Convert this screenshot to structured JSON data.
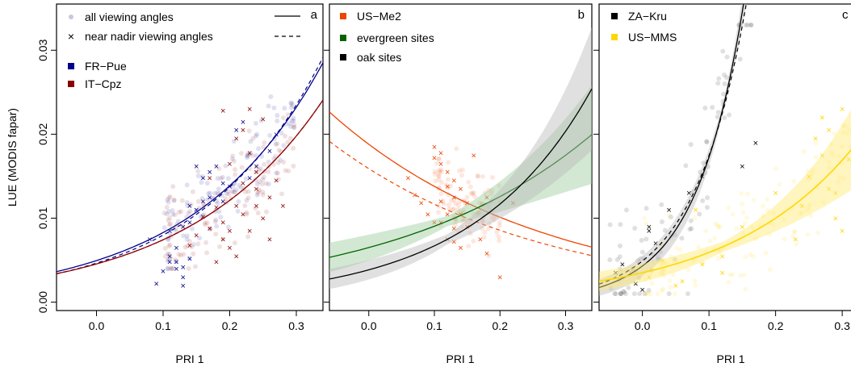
{
  "chart_data": [
    {
      "type": "scatter",
      "panel_label": "a",
      "xlabel": "PRI 1",
      "ylabel": "LUE (MODIS fapar)",
      "xlim": [
        -0.06,
        0.34
      ],
      "ylim": [
        -0.001,
        0.0355
      ],
      "xticks": [
        "0.0",
        "0.1",
        "0.2",
        "0.3"
      ],
      "xtick_values": [
        0.0,
        0.1,
        0.2,
        0.3
      ],
      "yticks": [
        "0.00",
        "0.01",
        "0.02",
        "0.03"
      ],
      "ytick_values": [
        0.0,
        0.01,
        0.02,
        0.03
      ],
      "legend": {
        "placement": "top-left",
        "style_entries": [
          {
            "label": "all viewing angles",
            "marker": "dot",
            "line": "solid"
          },
          {
            "label": "near nadir viewing angles",
            "marker": "cross",
            "line": "dashed"
          }
        ],
        "site_entries": [
          {
            "label": "FR−Pue",
            "color": "#00008B"
          },
          {
            "label": "IT−Cpz",
            "color": "#8B0000"
          }
        ]
      },
      "series": [
        {
          "name": "FR−Pue",
          "color": "#00008B",
          "fit": {
            "a": 0.00495,
            "b": 5.15
          },
          "fit_nadir": {
            "a": 0.00465,
            "b": 5.4
          },
          "all_points": {
            "x_range": [
              0.1,
              0.3
            ],
            "y_range": [
              0.004,
              0.025
            ],
            "count": 120
          },
          "nadir_points": [
            [
              0.08,
              0.0075
            ],
            [
              0.09,
              0.0022
            ],
            [
              0.1,
              0.0037
            ],
            [
              0.11,
              0.0055
            ],
            [
              0.11,
              0.0085
            ],
            [
              0.12,
              0.004
            ],
            [
              0.12,
              0.0048
            ],
            [
              0.12,
              0.0065
            ],
            [
              0.13,
              0.003
            ],
            [
              0.13,
              0.002
            ],
            [
              0.13,
              0.009
            ],
            [
              0.13,
              0.0042
            ],
            [
              0.14,
              0.0095
            ],
            [
              0.14,
              0.0052
            ],
            [
              0.15,
              0.0162
            ],
            [
              0.15,
              0.011
            ],
            [
              0.16,
              0.012
            ],
            [
              0.16,
              0.0148
            ],
            [
              0.17,
              0.0155
            ],
            [
              0.17,
              0.0125
            ],
            [
              0.18,
              0.0162
            ],
            [
              0.19,
              0.0142
            ],
            [
              0.2,
              0.0138
            ],
            [
              0.21,
              0.0205
            ],
            [
              0.22,
              0.0215
            ],
            [
              0.23,
              0.0148
            ],
            [
              0.24,
              0.0162
            ],
            [
              0.26,
              0.018
            ],
            [
              0.27,
              0.02
            ],
            [
              0.11,
              0.0048
            ],
            [
              0.14,
              0.0115
            ],
            [
              0.19,
              0.012
            ]
          ]
        },
        {
          "name": "IT−Cpz",
          "color": "#8B0000",
          "fit": {
            "a": 0.00455,
            "b": 4.9
          },
          "fit_nadir": {
            "a": 0.00455,
            "b": 4.9
          },
          "all_points": {
            "x_range": [
              0.1,
              0.3
            ],
            "y_range": [
              0.004,
              0.025
            ],
            "count": 130
          },
          "nadir_points": [
            [
              0.14,
              0.0068
            ],
            [
              0.15,
              0.008
            ],
            [
              0.16,
              0.0102
            ],
            [
              0.17,
              0.0088
            ],
            [
              0.18,
              0.0113
            ],
            [
              0.18,
              0.0048
            ],
            [
              0.19,
              0.0095
            ],
            [
              0.19,
              0.0228
            ],
            [
              0.2,
              0.0065
            ],
            [
              0.2,
              0.0085
            ],
            [
              0.2,
              0.0165
            ],
            [
              0.21,
              0.0115
            ],
            [
              0.21,
              0.0055
            ],
            [
              0.22,
              0.0105
            ],
            [
              0.22,
              0.0142
            ],
            [
              0.22,
              0.0205
            ],
            [
              0.23,
              0.023
            ],
            [
              0.23,
              0.0178
            ],
            [
              0.23,
              0.0085
            ],
            [
              0.24,
              0.0115
            ],
            [
              0.24,
              0.0135
            ],
            [
              0.25,
              0.0218
            ],
            [
              0.25,
              0.01
            ],
            [
              0.26,
              0.0125
            ],
            [
              0.26,
              0.0075
            ],
            [
              0.27,
              0.0145
            ],
            [
              0.28,
              0.0115
            ],
            [
              0.17,
              0.0148
            ],
            [
              0.19,
              0.0075
            ],
            [
              0.21,
              0.0195
            ],
            [
              0.24,
              0.0155
            ]
          ]
        }
      ]
    },
    {
      "type": "scatter",
      "panel_label": "b",
      "xlabel": "PRI 1",
      "ylabel": "",
      "xlim": [
        -0.06,
        0.34
      ],
      "ylim": [
        -0.001,
        0.0355
      ],
      "xticks": [
        "0.0",
        "0.1",
        "0.2",
        "0.3"
      ],
      "xtick_values": [
        0.0,
        0.1,
        0.2,
        0.3
      ],
      "yticks": [],
      "legend": {
        "placement": "top-left",
        "site_entries": [
          {
            "label": "US−Me2",
            "color": "#EE4400"
          },
          {
            "label": "evergreen sites",
            "color": "#006400"
          },
          {
            "label": "oak sites",
            "color": "#000000"
          }
        ]
      },
      "series": [
        {
          "name": "US−Me2",
          "color": "#EE4400",
          "fit": {
            "a": 0.0188,
            "b": -3.1
          },
          "fit_nadir": {
            "a": 0.0159,
            "b": -3.1
          },
          "all_points": {
            "x_range": [
              0.1,
              0.2
            ],
            "y_range": [
              0.005,
              0.023
            ],
            "count": 110
          },
          "nadir_points": [
            [
              0.06,
              0.0148
            ],
            [
              0.07,
              0.0128
            ],
            [
              0.08,
              0.0118
            ],
            [
              0.09,
              0.0105
            ],
            [
              0.1,
              0.0185
            ],
            [
              0.1,
              0.0095
            ],
            [
              0.11,
              0.0178
            ],
            [
              0.11,
              0.0165
            ],
            [
              0.11,
              0.012
            ],
            [
              0.11,
              0.0095
            ],
            [
              0.12,
              0.0155
            ],
            [
              0.12,
              0.0138
            ],
            [
              0.12,
              0.0105
            ],
            [
              0.12,
              0.0075
            ],
            [
              0.13,
              0.0145
            ],
            [
              0.13,
              0.0125
            ],
            [
              0.13,
              0.0088
            ],
            [
              0.13,
              0.0072
            ],
            [
              0.14,
              0.0135
            ],
            [
              0.14,
              0.0105
            ],
            [
              0.15,
              0.009
            ],
            [
              0.15,
              0.0118
            ],
            [
              0.16,
              0.0175
            ],
            [
              0.17,
              0.0075
            ],
            [
              0.18,
              0.0058
            ],
            [
              0.18,
              0.0125
            ],
            [
              0.2,
              0.003
            ],
            [
              0.22,
              0.0118
            ],
            [
              0.1,
              0.0172
            ],
            [
              0.14,
              0.0065
            ]
          ]
        },
        {
          "name": "evergreen sites",
          "color": "#006400",
          "fit": {
            "a": 0.0065,
            "b": 3.3
          }
        },
        {
          "name": "oak sites",
          "color": "#000000",
          "fit": {
            "a": 0.00385,
            "b": 5.55
          }
        }
      ]
    },
    {
      "type": "scatter",
      "panel_label": "c",
      "xlabel": "PRI 1",
      "ylabel": "",
      "xlim": [
        -0.065,
        0.335
      ],
      "ylim": [
        -0.001,
        0.0355
      ],
      "xticks": [
        "0.0",
        "0.1",
        "0.2",
        "0.3"
      ],
      "xtick_values": [
        0.0,
        0.1,
        0.2,
        0.3
      ],
      "yticks": [],
      "legend": {
        "placement": "top-left",
        "site_entries": [
          {
            "label": "ZA−Kru",
            "color": "#000000"
          },
          {
            "label": "US−MMS",
            "color": "#FFD700"
          }
        ]
      },
      "series": [
        {
          "name": "ZA−Kru",
          "color": "#000000",
          "fit": {
            "a": 0.0043,
            "b": 13.9
          },
          "fit_nadir": {
            "a": 0.0049,
            "b": 12.7
          },
          "all_points": {
            "x_range": [
              -0.05,
              0.17
            ],
            "y_range": [
              0.001,
              0.033
            ],
            "count": 90
          },
          "nadir_points": [
            [
              -0.04,
              0.0035
            ],
            [
              -0.03,
              0.0045
            ],
            [
              -0.01,
              0.0022
            ],
            [
              0.0,
              0.0015
            ],
            [
              0.01,
              0.0085
            ],
            [
              0.01,
              0.009
            ],
            [
              0.02,
              0.007
            ],
            [
              0.04,
              0.011
            ],
            [
              0.07,
              0.013
            ],
            [
              0.09,
              0.015
            ],
            [
              0.15,
              0.0162
            ],
            [
              0.17,
              0.019
            ]
          ]
        },
        {
          "name": "US−MMS",
          "color": "#FFD700",
          "fit": {
            "a": 0.0035,
            "b": 5.25
          },
          "all_points": {
            "x_range": [
              0.0,
              0.33
            ],
            "y_range": [
              0.001,
              0.028
            ],
            "count": 140
          },
          "nadir_points": [
            [
              0.01,
              0.003
            ],
            [
              0.03,
              0.005
            ],
            [
              0.05,
              0.002
            ],
            [
              0.06,
              0.0025
            ],
            [
              0.08,
              0.011
            ],
            [
              0.09,
              0.0045
            ],
            [
              0.12,
              0.0055
            ],
            [
              0.12,
              0.0035
            ],
            [
              0.15,
              0.009
            ],
            [
              0.2,
              0.013
            ],
            [
              0.23,
              0.0075
            ],
            [
              0.24,
              0.0115
            ],
            [
              0.25,
              0.015
            ],
            [
              0.26,
              0.0195
            ],
            [
              0.27,
              0.022
            ],
            [
              0.27,
              0.0175
            ],
            [
              0.28,
              0.0205
            ],
            [
              0.28,
              0.0135
            ],
            [
              0.29,
              0.013
            ],
            [
              0.3,
              0.023
            ],
            [
              0.31,
              0.017
            ],
            [
              0.32,
              0.0195
            ],
            [
              0.33,
              0.0145
            ],
            [
              0.3,
              0.0085
            ],
            [
              0.29,
              0.01
            ]
          ]
        }
      ]
    }
  ]
}
